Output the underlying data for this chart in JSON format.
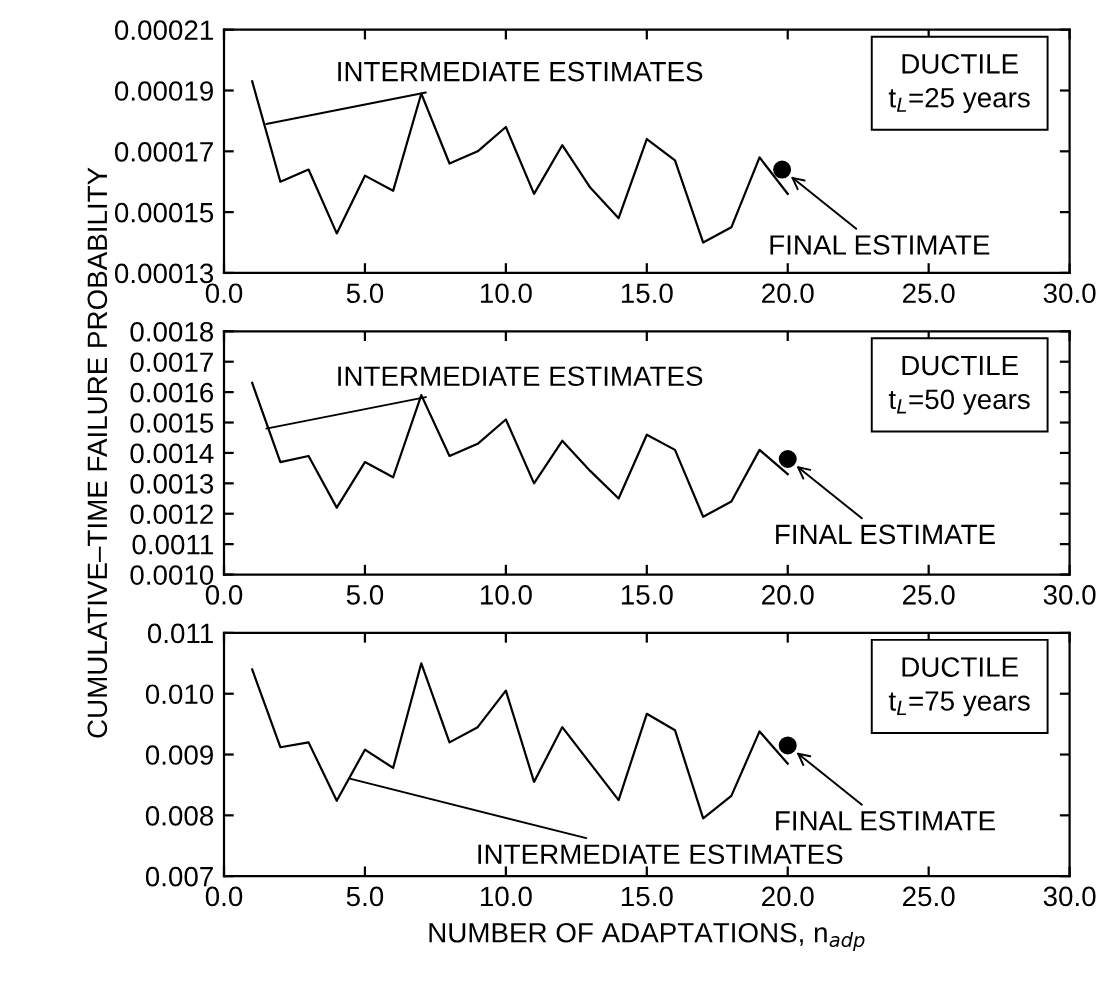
{
  "chart_data": [
    {
      "type": "line",
      "xlim": [
        0,
        30
      ],
      "xticks": [
        {
          "value": 0,
          "label": "0.0"
        },
        {
          "value": 5,
          "label": "5.0"
        },
        {
          "value": 10,
          "label": "10.0"
        },
        {
          "value": 15,
          "label": "15.0"
        },
        {
          "value": 20,
          "label": "20.0"
        },
        {
          "value": 25,
          "label": "25.0"
        },
        {
          "value": 30,
          "label": "30.0"
        }
      ],
      "ylim": [
        0.00013,
        0.00021
      ],
      "yticks": [
        0.00013,
        0.00015,
        0.00017,
        0.00019,
        0.00021
      ],
      "grid": false,
      "legend": false,
      "series": [
        {
          "color": "#000000",
          "x": [
            1,
            2,
            3,
            4,
            5,
            6,
            7,
            8,
            9,
            10,
            11,
            12,
            13,
            14,
            15,
            16,
            17,
            18,
            19,
            20
          ],
          "values": [
            0.000193,
            0.00016,
            0.000164,
            0.000143,
            0.000162,
            0.000157,
            0.000189,
            0.000166,
            0.00017,
            0.000178,
            0.000156,
            0.000172,
            0.000158,
            0.000148,
            0.000174,
            0.000167,
            0.00014,
            0.000145,
            0.000168,
            0.000156
          ]
        },
        {
          "type": "scatter",
          "color": "#000000",
          "marker": "circle",
          "x": [
            19.8
          ],
          "values": [
            0.000164
          ]
        }
      ],
      "annotations": [
        {
          "text": "INTERMEDIATE ESTIMATES",
          "x": 1.5,
          "y": 0.000179
        },
        {
          "text": "FINAL ESTIMATE",
          "x": 19.8,
          "y": 0.000164
        },
        "DUCTILE\nt$_{L}$=25 years"
      ]
    },
    {
      "type": "line",
      "xlim": [
        0,
        30
      ],
      "xticks": [
        {
          "value": 0,
          "label": "0.0"
        },
        {
          "value": 5,
          "label": "5.0"
        },
        {
          "value": 10,
          "label": "10.0"
        },
        {
          "value": 15,
          "label": "15.0"
        },
        {
          "value": 20,
          "label": "20.0"
        },
        {
          "value": 25,
          "label": "25.0"
        },
        {
          "value": 30,
          "label": "30.0"
        }
      ],
      "ylim": [
        0.001,
        0.0018
      ],
      "yticks": [
        {
          "value": 0.001,
          "label": "0.0010"
        },
        0.0011,
        0.0012,
        0.0013,
        0.0014,
        0.0015,
        0.0016,
        0.0017,
        0.0018
      ],
      "grid": false,
      "legend": false,
      "ylabel": "CUMULATIVE–TIME FAILURE PROBABILITY",
      "series": [
        {
          "color": "#000000",
          "x": [
            1,
            2,
            3,
            4,
            5,
            6,
            7,
            8,
            9,
            10,
            11,
            12,
            13,
            14,
            15,
            16,
            17,
            18,
            19,
            20
          ],
          "values": [
            0.00163,
            0.00137,
            0.00139,
            0.00122,
            0.00137,
            0.00132,
            0.00159,
            0.00139,
            0.00143,
            0.00151,
            0.0013,
            0.00144,
            0.00134,
            0.00125,
            0.00146,
            0.00141,
            0.00119,
            0.00124,
            0.00141,
            0.00133
          ]
        },
        {
          "type": "scatter",
          "color": "#000000",
          "marker": "circle",
          "x": [
            20
          ],
          "values": [
            0.00138
          ]
        }
      ],
      "annotations": [
        {
          "text": "INTERMEDIATE ESTIMATES",
          "x": 1.5,
          "y": 0.00148
        },
        {
          "text": "FINAL ESTIMATE",
          "x": 20,
          "y": 0.00138
        },
        "DUCTILE\nt$_{L}$=50 years"
      ]
    },
    {
      "type": "line",
      "xlim": [
        0,
        30
      ],
      "xticks": [
        {
          "value": 0,
          "label": "0.0"
        },
        {
          "value": 5,
          "label": "5.0"
        },
        {
          "value": 10,
          "label": "10.0"
        },
        {
          "value": 15,
          "label": "15.0"
        },
        {
          "value": 20,
          "label": "20.0"
        },
        {
          "value": 25,
          "label": "25.0"
        },
        {
          "value": 30,
          "label": "30.0"
        }
      ],
      "ylim": [
        0.007,
        0.011
      ],
      "yticks": [
        0.007,
        0.008,
        0.009,
        {
          "value": 0.01,
          "label": "0.010"
        },
        0.011
      ],
      "grid": false,
      "legend": false,
      "xlabel": "NUMBER OF ADAPTATIONS, n$_{adp}$",
      "series": [
        {
          "color": "#000000",
          "x": [
            1,
            2,
            3,
            4,
            5,
            6,
            7,
            8,
            9,
            10,
            11,
            12,
            13,
            14,
            15,
            16,
            17,
            18,
            19,
            20
          ],
          "values": [
            0.0104,
            0.00912,
            0.0092,
            0.00824,
            0.00908,
            0.00878,
            0.0105,
            0.0092,
            0.00945,
            0.01005,
            0.00855,
            0.00945,
            0.00885,
            0.00825,
            0.00967,
            0.0094,
            0.00795,
            0.00832,
            0.00938,
            0.00885
          ]
        },
        {
          "type": "scatter",
          "color": "#000000",
          "marker": "circle",
          "x": [
            20
          ],
          "values": [
            0.00915
          ]
        }
      ],
      "annotations": [
        {
          "text": "INTERMEDIATE ESTIMATES",
          "x": 4.5,
          "y": 0.0086
        },
        {
          "text": "FINAL ESTIMATE",
          "x": 20,
          "y": 0.00915
        },
        "DUCTILE\nt$_{L}$=75 years"
      ]
    }
  ]
}
